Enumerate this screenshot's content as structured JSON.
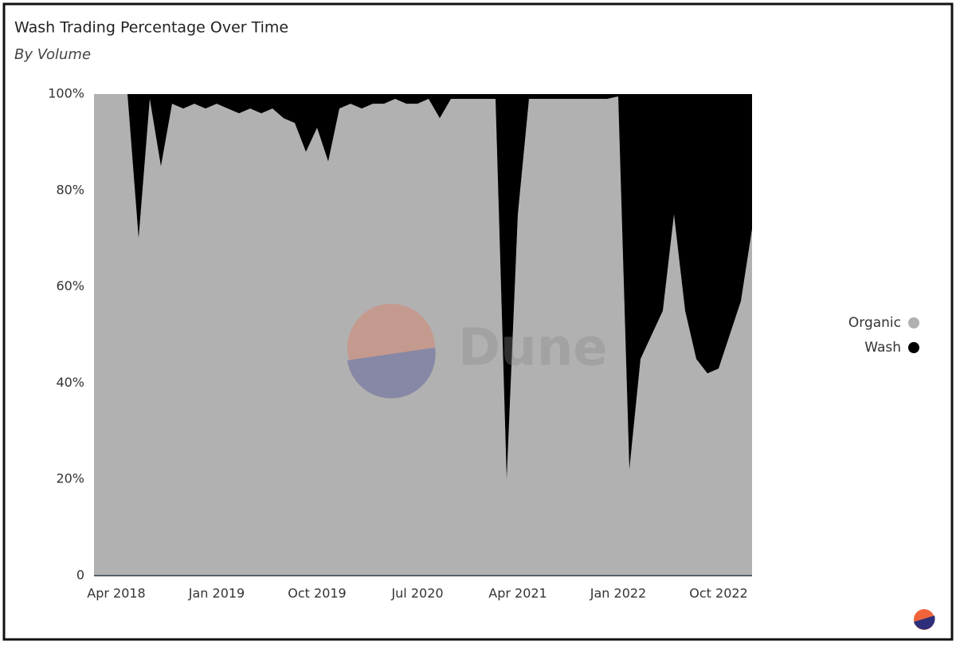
{
  "chart_data": {
    "type": "stacked_area",
    "title": "Wash Trading Percentage Over Time",
    "subtitle": "By Volume",
    "watermark": "Dune",
    "x": [
      "2018-02",
      "2018-03",
      "2018-04",
      "2018-05",
      "2018-06",
      "2018-07",
      "2018-08",
      "2018-09",
      "2018-10",
      "2018-11",
      "2018-12",
      "2019-01",
      "2019-02",
      "2019-03",
      "2019-04",
      "2019-05",
      "2019-06",
      "2019-07",
      "2019-08",
      "2019-09",
      "2019-10",
      "2019-11",
      "2019-12",
      "2020-01",
      "2020-02",
      "2020-03",
      "2020-04",
      "2020-05",
      "2020-06",
      "2020-07",
      "2020-08",
      "2020-09",
      "2020-10",
      "2020-11",
      "2020-12",
      "2021-01",
      "2021-02",
      "2021-03",
      "2021-04",
      "2021-05",
      "2021-06",
      "2021-07",
      "2021-08",
      "2021-09",
      "2021-10",
      "2021-11",
      "2021-12",
      "2022-01",
      "2022-02",
      "2022-03",
      "2022-04",
      "2022-05",
      "2022-06",
      "2022-07",
      "2022-08",
      "2022-09",
      "2022-10",
      "2022-11",
      "2022-12",
      "2023-01"
    ],
    "series": [
      {
        "name": "Organic",
        "color": "#b1b1b1",
        "values": [
          100,
          100,
          100,
          100,
          70,
          99,
          85,
          98,
          97,
          98,
          97,
          98,
          97,
          96,
          97,
          96,
          97,
          95,
          94,
          88,
          93,
          86,
          97,
          98,
          97,
          98,
          98,
          99,
          98,
          98,
          99,
          95,
          99,
          99,
          99,
          99,
          99,
          20,
          75,
          99,
          99,
          99,
          99,
          99,
          99,
          99,
          99,
          99.5,
          22,
          45,
          50,
          55,
          75,
          55,
          45,
          42,
          43,
          50,
          57,
          72
        ]
      },
      {
        "name": "Wash",
        "color": "#000000",
        "values": [
          0,
          0,
          0,
          0,
          30,
          1,
          15,
          2,
          3,
          2,
          3,
          2,
          3,
          4,
          3,
          4,
          3,
          5,
          6,
          12,
          7,
          14,
          3,
          2,
          3,
          2,
          2,
          1,
          2,
          2,
          1,
          5,
          1,
          1,
          1,
          1,
          1,
          80,
          25,
          1,
          1,
          1,
          1,
          1,
          1,
          1,
          1,
          0.5,
          78,
          55,
          50,
          45,
          25,
          45,
          55,
          58,
          57,
          50,
          43,
          28
        ]
      }
    ],
    "xlim": [
      "2018-02",
      "2023-01"
    ],
    "xticks": [
      {
        "value": "2018-04",
        "label": "Apr 2018"
      },
      {
        "value": "2019-01",
        "label": "Jan 2019"
      },
      {
        "value": "2019-10",
        "label": "Oct 2019"
      },
      {
        "value": "2020-07",
        "label": "Jul 2020"
      },
      {
        "value": "2021-04",
        "label": "Apr 2021"
      },
      {
        "value": "2022-01",
        "label": "Jan 2022"
      },
      {
        "value": "2022-10",
        "label": "Oct 2022"
      }
    ],
    "ylim": [
      0,
      100
    ],
    "yticks": [
      0,
      {
        "value": 20,
        "label": "20%"
      },
      {
        "value": 40,
        "label": "40%"
      },
      {
        "value": 60,
        "label": "60%"
      },
      {
        "value": 80,
        "label": "80%"
      },
      {
        "value": 100,
        "label": "100%"
      }
    ],
    "grid": false,
    "legend": "right"
  }
}
